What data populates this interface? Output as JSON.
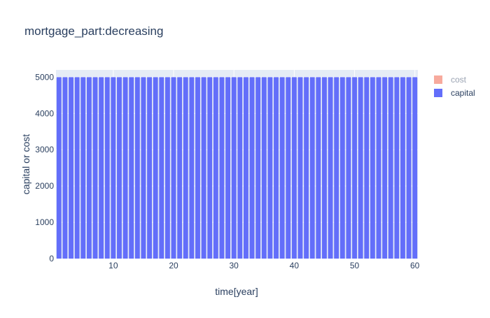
{
  "chart_data": {
    "type": "bar",
    "title": "mortgage_part:decreasing",
    "xlabel": "time[year]",
    "ylabel": "capital or cost",
    "xlim": [
      0.5,
      60.5
    ],
    "ylim": [
      0,
      5200
    ],
    "x_ticks": [
      10,
      20,
      30,
      40,
      50,
      60
    ],
    "y_ticks": [
      0,
      1000,
      2000,
      3000,
      4000,
      5000
    ],
    "barmode": "stack",
    "grid": true,
    "legend_position": "right",
    "x": [
      1,
      2,
      3,
      4,
      5,
      6,
      7,
      8,
      9,
      10,
      11,
      12,
      13,
      14,
      15,
      16,
      17,
      18,
      19,
      20,
      21,
      22,
      23,
      24,
      25,
      26,
      27,
      28,
      29,
      30,
      31,
      32,
      33,
      34,
      35,
      36,
      37,
      38,
      39,
      40,
      41,
      42,
      43,
      44,
      45,
      46,
      47,
      48,
      49,
      50,
      51,
      52,
      53,
      54,
      55,
      56,
      57,
      58,
      59,
      60
    ],
    "series": [
      {
        "name": "capital",
        "color": "#636efa",
        "values": [
          5000,
          5000,
          5000,
          5000,
          5000,
          5000,
          5000,
          5000,
          5000,
          5000,
          5000,
          5000,
          5000,
          5000,
          5000,
          5000,
          5000,
          5000,
          5000,
          5000,
          5000,
          5000,
          5000,
          5000,
          5000,
          5000,
          5000,
          5000,
          5000,
          5000,
          5000,
          5000,
          5000,
          5000,
          5000,
          5000,
          5000,
          5000,
          5000,
          5000,
          5000,
          5000,
          5000,
          5000,
          5000,
          5000,
          5000,
          5000,
          5000,
          5000,
          5000,
          5000,
          5000,
          5000,
          5000,
          5000,
          5000,
          5000,
          5000,
          5000
        ]
      },
      {
        "name": "cost",
        "color": "#ef553b",
        "values": [
          0,
          0,
          0,
          0,
          0,
          0,
          0,
          0,
          0,
          0,
          0,
          0,
          0,
          0,
          0,
          0,
          0,
          0,
          0,
          0,
          0,
          0,
          0,
          0,
          0,
          0,
          0,
          0,
          0,
          0,
          0,
          0,
          0,
          0,
          0,
          0,
          0,
          0,
          0,
          0,
          0,
          0,
          0,
          0,
          0,
          0,
          0,
          0,
          0,
          0,
          0,
          0,
          0,
          0,
          0,
          0,
          0,
          0,
          0,
          0
        ]
      }
    ],
    "legend": [
      {
        "name": "cost",
        "color": "#ef553b",
        "dimmed": true
      },
      {
        "name": "capital",
        "color": "#636efa",
        "dimmed": false
      }
    ],
    "plot_bgcolor": "#e5ecf6"
  }
}
